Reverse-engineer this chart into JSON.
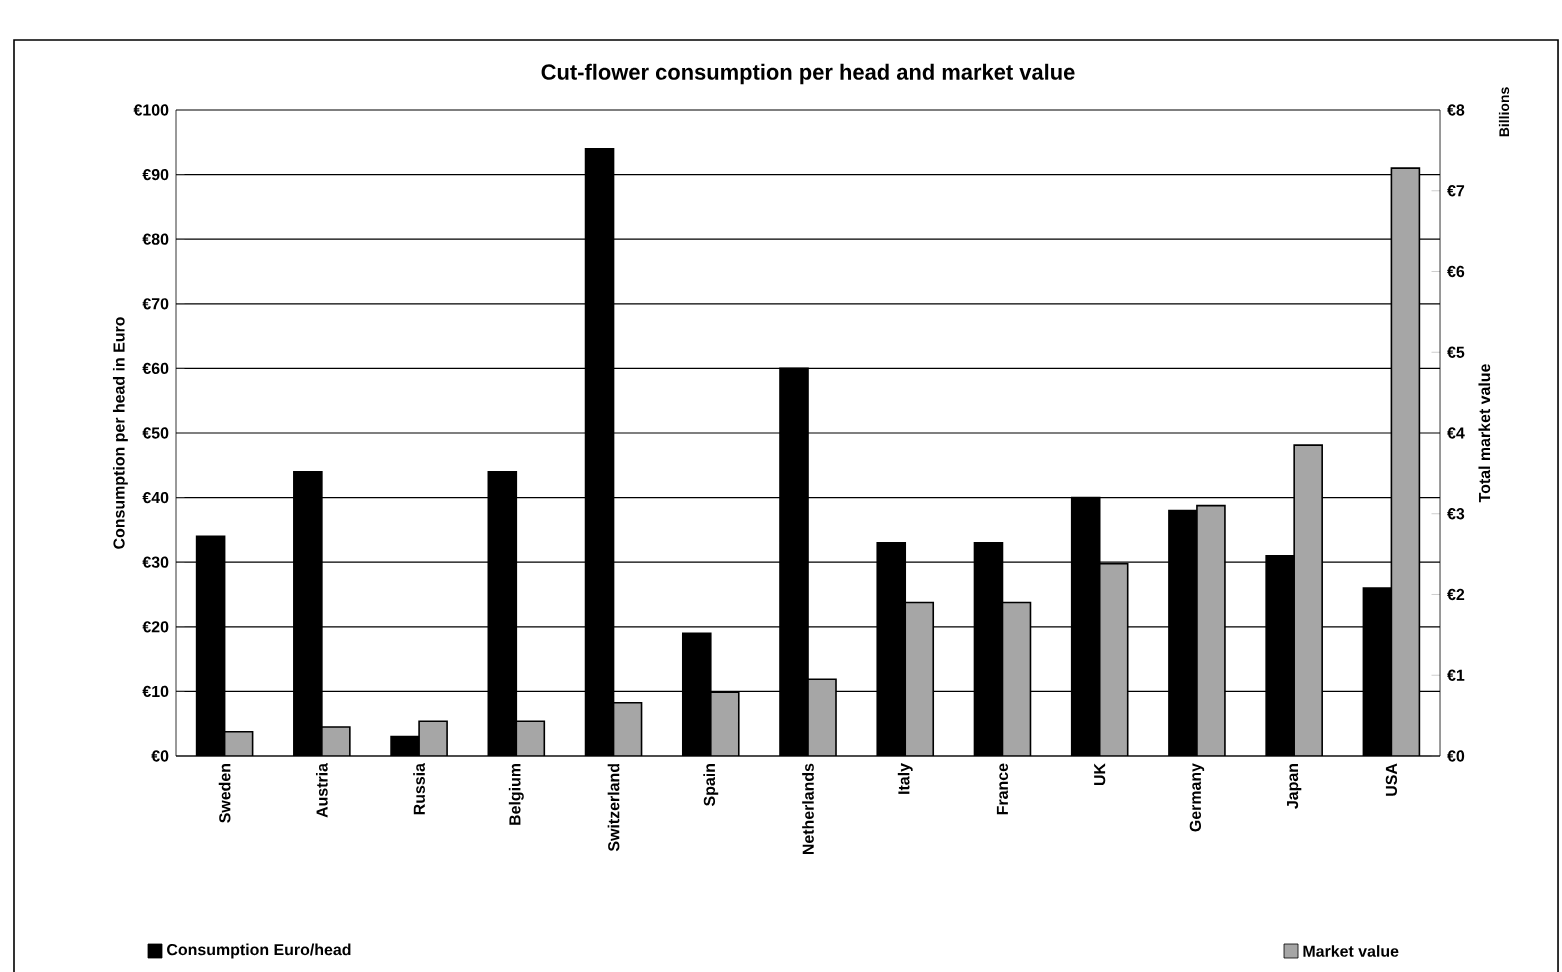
{
  "chart_data": {
    "type": "bar",
    "title": "Cut-flower consumption per head and market value",
    "ylabel": "Consumption per head in Euro",
    "y2label": "Total market value",
    "annotations": [
      "Billions"
    ],
    "categories": [
      "Sweden",
      "Austria",
      "Russia",
      "Belgium",
      "Switzerland",
      "Spain",
      "Netherlands",
      "Italy",
      "France",
      "UK",
      "Germany",
      "Japan",
      "USA"
    ],
    "series": [
      {
        "name": "Consumption Euro/head",
        "color": "#000000",
        "values": [
          34,
          44,
          3,
          44,
          94,
          19,
          60,
          33,
          33,
          40,
          38,
          31,
          26
        ]
      },
      {
        "name": "Market value",
        "color": "#a6a6a6",
        "axis": "y2",
        "values": [
          0.3,
          0.36,
          0.43,
          0.43,
          0.66,
          0.79,
          0.95,
          1.9,
          1.9,
          2.38,
          3.1,
          3.85,
          7.28
        ]
      }
    ],
    "ylim": [
      0,
      100
    ],
    "yticks": [
      {
        "value": 0,
        "label": "€0"
      },
      {
        "value": 10,
        "label": "€10"
      },
      {
        "value": 20,
        "label": "€20"
      },
      {
        "value": 30,
        "label": "€30"
      },
      {
        "value": 40,
        "label": "€40"
      },
      {
        "value": 50,
        "label": "€50"
      },
      {
        "value": 60,
        "label": "€60"
      },
      {
        "value": 70,
        "label": "€70"
      },
      {
        "value": 80,
        "label": "€80"
      },
      {
        "value": 90,
        "label": "€90"
      },
      {
        "value": 100,
        "label": "€100"
      }
    ],
    "y2lim": [
      0,
      8
    ],
    "y2ticks": [
      {
        "value": 0,
        "label": "€0"
      },
      {
        "value": 1,
        "label": "€1"
      },
      {
        "value": 2,
        "label": "€2"
      },
      {
        "value": 3,
        "label": "€3"
      },
      {
        "value": 4,
        "label": "€4"
      },
      {
        "value": 5,
        "label": "€5"
      },
      {
        "value": 6,
        "label": "€6"
      },
      {
        "value": 7,
        "label": "€7"
      },
      {
        "value": 8,
        "label": "€8"
      }
    ],
    "grid": "y",
    "legend": "bottom"
  }
}
